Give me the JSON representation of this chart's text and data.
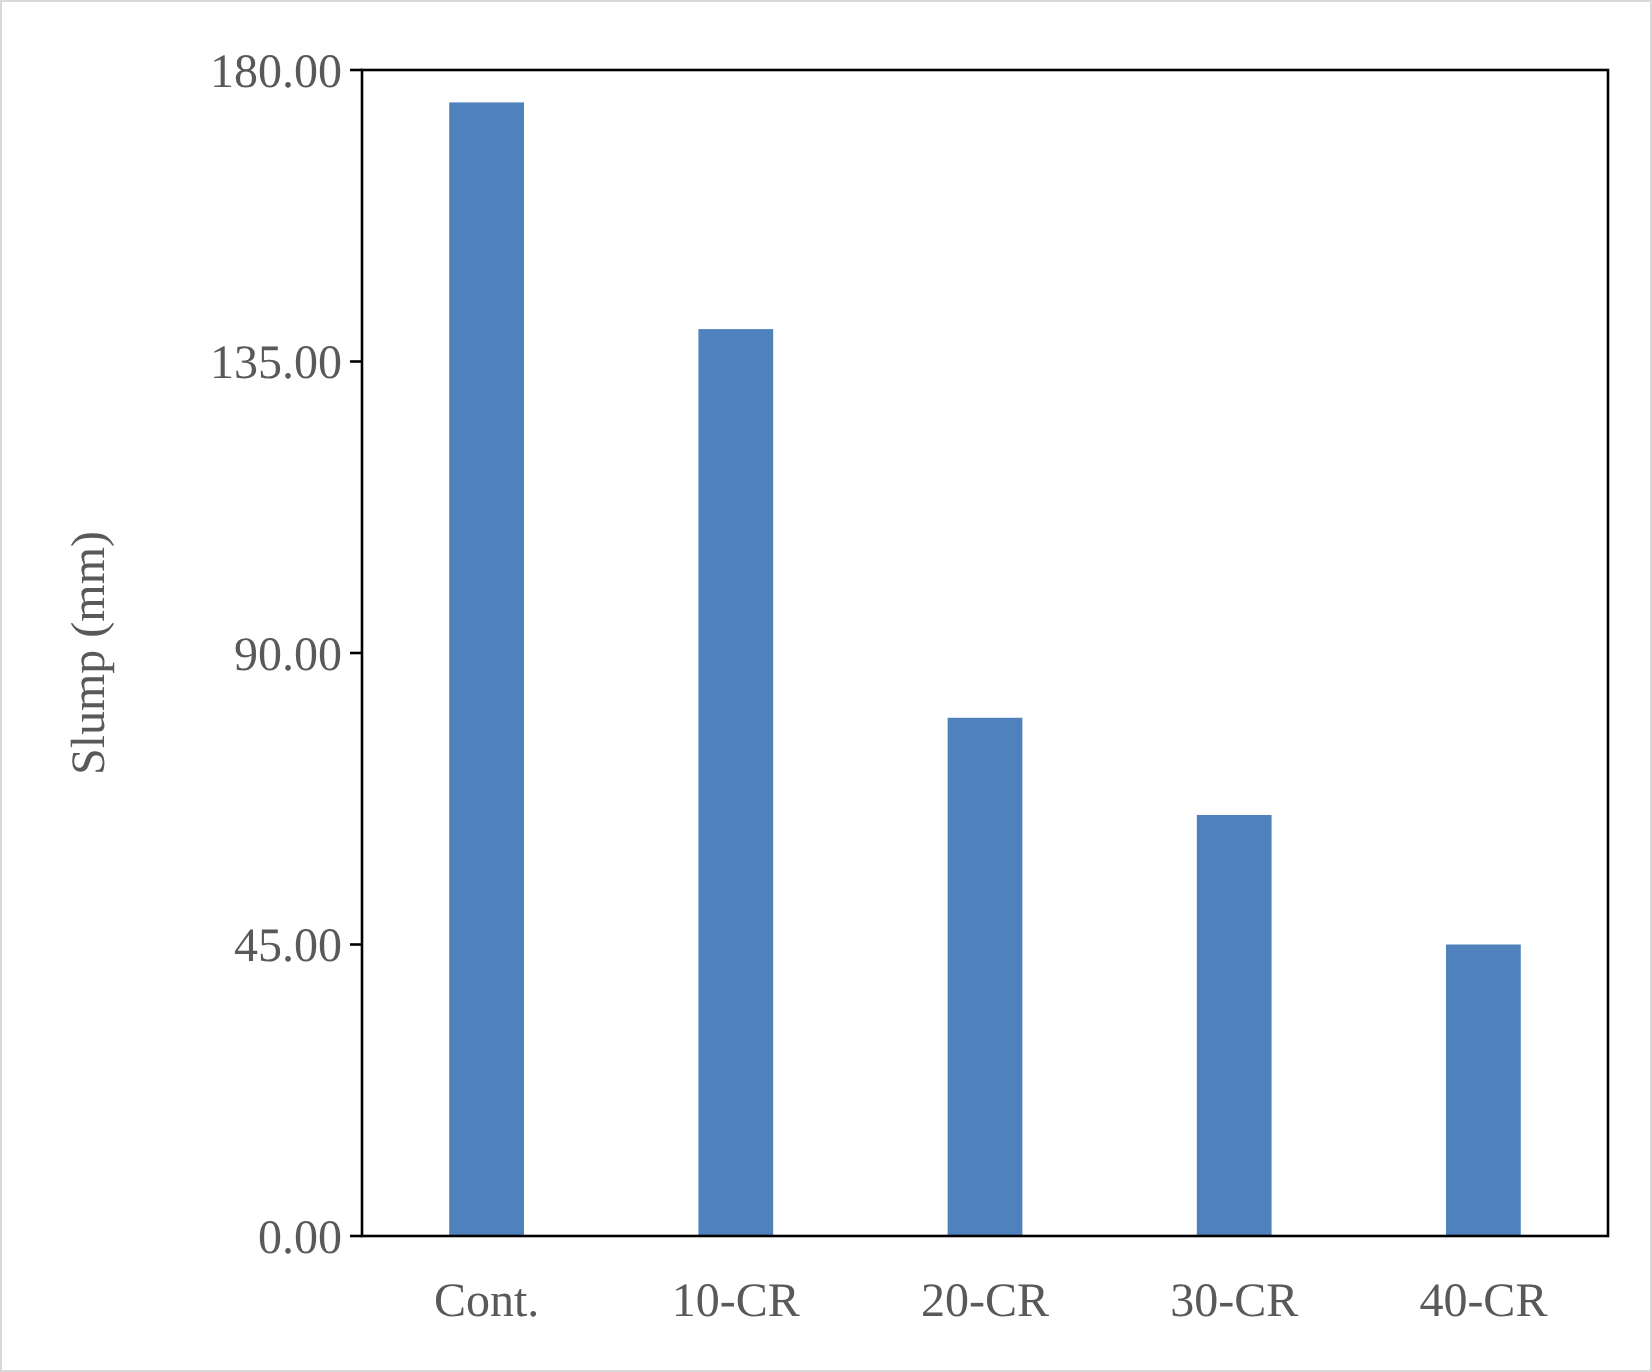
{
  "chart_data": {
    "type": "bar",
    "ylabel": "Slump (mm)",
    "categories": [
      "Cont.",
      "10-CR",
      "20-CR",
      "30-CR",
      "40-CR"
    ],
    "values": [
      175,
      140,
      80,
      65,
      45
    ],
    "color": "#4f81bd",
    "ylim": [
      0,
      180
    ],
    "yticks": [
      {
        "value": 0,
        "label": "0.00"
      },
      {
        "value": 45,
        "label": "45.00"
      },
      {
        "value": 90,
        "label": "90.00"
      },
      {
        "value": 135,
        "label": "135.00"
      },
      {
        "value": 180,
        "label": "180.00"
      }
    ],
    "grid": false
  }
}
